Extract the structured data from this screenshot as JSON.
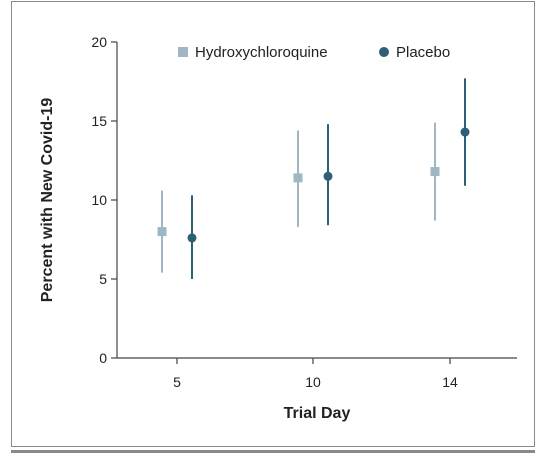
{
  "chart_data": {
    "type": "scatter",
    "title": "",
    "xlabel": "Trial Day",
    "ylabel": "Percent with New Covid-19",
    "categories": [
      "5",
      "10",
      "14"
    ],
    "ylim": [
      0,
      20
    ],
    "yticks": [
      0,
      5,
      10,
      15,
      20
    ],
    "grid": false,
    "legend_position": "top",
    "series": [
      {
        "name": "Hydroxychloroquine",
        "marker": "square",
        "color": "#9fb6c3",
        "values": [
          8.0,
          11.4,
          11.8
        ],
        "lower": [
          5.4,
          8.3,
          8.7
        ],
        "upper": [
          10.6,
          14.4,
          14.9
        ]
      },
      {
        "name": "Placebo",
        "marker": "circle",
        "color": "#2c5f78",
        "values": [
          7.6,
          11.5,
          14.3
        ],
        "lower": [
          5.0,
          8.4,
          10.9
        ],
        "upper": [
          10.3,
          14.8,
          17.7
        ]
      }
    ]
  }
}
